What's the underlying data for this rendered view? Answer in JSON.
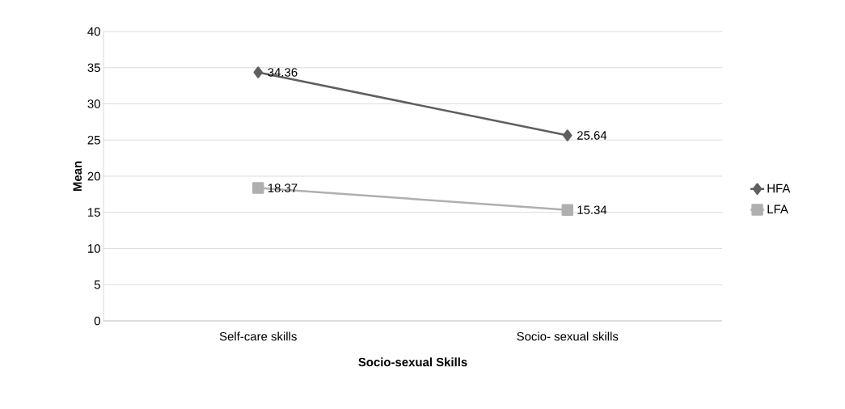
{
  "chart_data": {
    "type": "line",
    "xlabel": "Socio-sexual Skills",
    "ylabel": "Mean",
    "categories": [
      "Self-care skills",
      "Socio- sexual skills"
    ],
    "series": [
      {
        "name": "HFA",
        "color": "#5f5f5f",
        "marker": "diamond",
        "values": [
          34.36,
          25.64
        ]
      },
      {
        "name": "LFA",
        "color": "#afafaf",
        "marker": "square",
        "values": [
          18.37,
          15.34
        ]
      }
    ],
    "ylim": [
      0,
      40
    ],
    "yticks": [
      0,
      5,
      10,
      15,
      20,
      25,
      30,
      35,
      40
    ],
    "grid": "y",
    "legend": "right",
    "data_labels": true
  }
}
